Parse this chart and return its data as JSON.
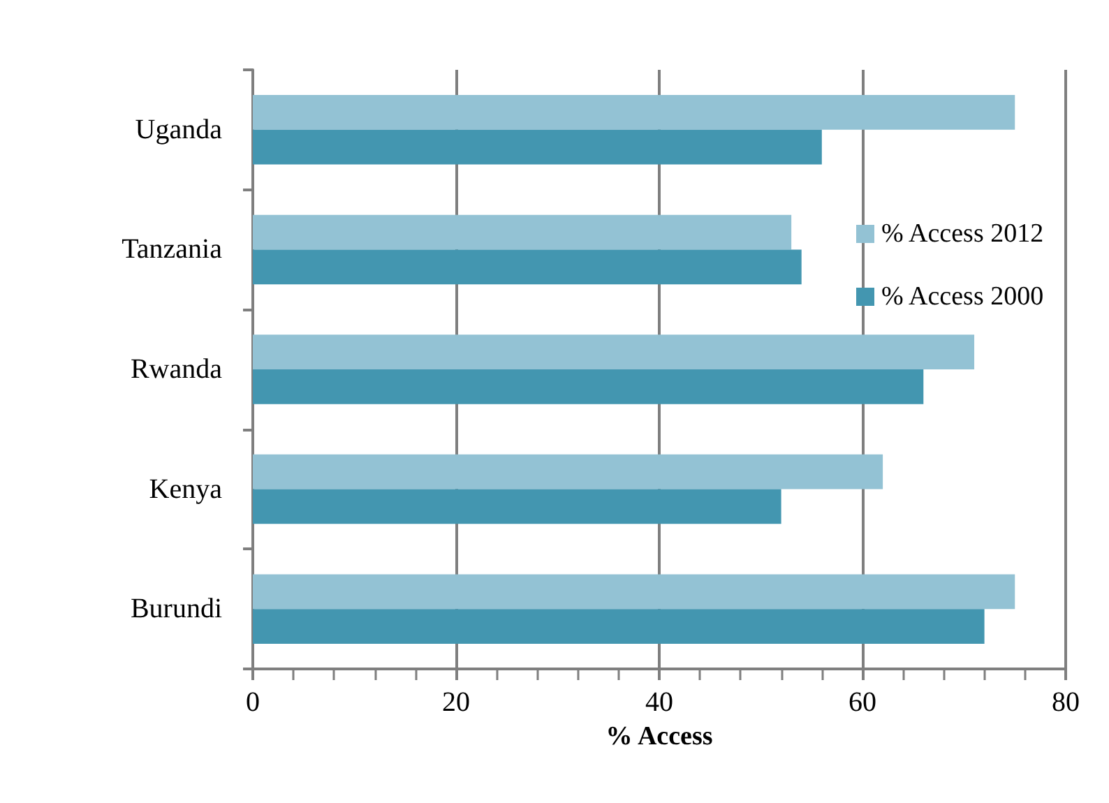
{
  "chart_data": {
    "type": "bar",
    "orientation": "horizontal",
    "xlabel": "% Access",
    "categories": [
      "Uganda",
      "Tanzania",
      "Rwanda",
      "Kenya",
      "Burundi"
    ],
    "series": [
      {
        "name": "% Access 2012",
        "color": "#93c2d4",
        "values": [
          75,
          53,
          71,
          62,
          75
        ]
      },
      {
        "name": "% Access 2000",
        "color": "#4396b0",
        "values": [
          56,
          54,
          66,
          52,
          72
        ]
      }
    ],
    "xlim": [
      0,
      80
    ],
    "xticks": [
      0,
      20,
      40,
      60,
      80
    ],
    "grid": "x",
    "legend": "right"
  }
}
